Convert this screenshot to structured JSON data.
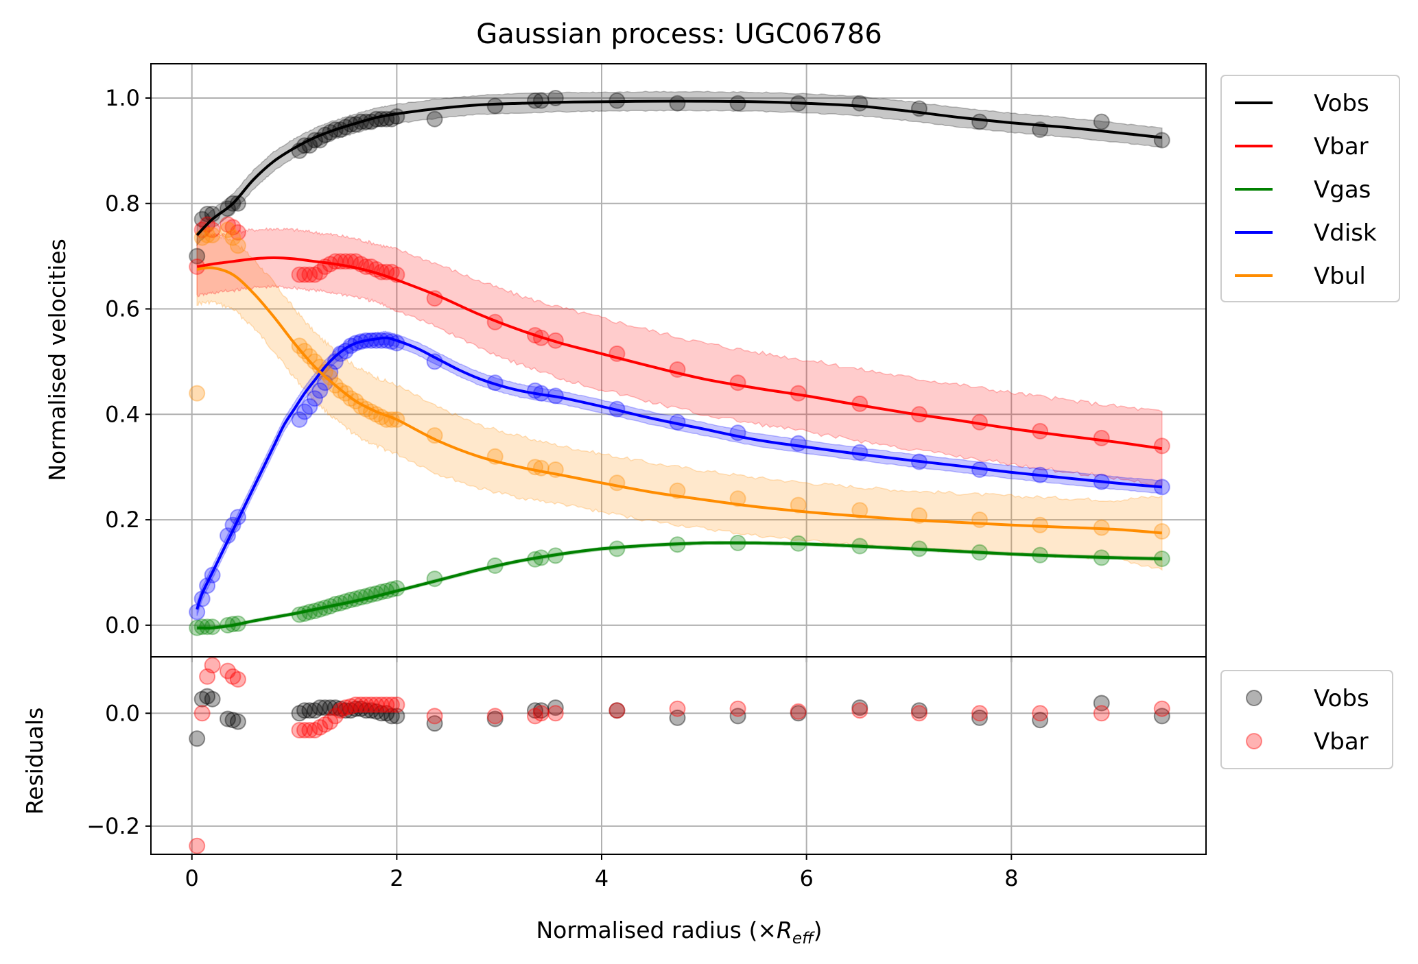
{
  "chart_data": [
    {
      "type": "line",
      "title": "Gaussian process: UGC06786",
      "xlabel_prefix": "Normalised radius (×",
      "xlabel_R": "R",
      "xlabel_sub": "eff",
      "xlabel_suffix": ")",
      "ylabel": "Normalised velocities",
      "xlim": [
        -0.4,
        9.9
      ],
      "ylim": [
        -0.06,
        1.065
      ],
      "x_ticks": [
        0,
        2,
        4,
        6,
        8
      ],
      "x_tick_labels": [
        "0",
        "2",
        "4",
        "6",
        "8"
      ],
      "y_ticks": [
        0.0,
        0.2,
        0.4,
        0.6,
        0.8,
        1.0
      ],
      "y_tick_labels": [
        "0.0",
        "0.2",
        "0.4",
        "0.6",
        "0.8",
        "1.0"
      ],
      "grid": true,
      "legend_placement": "outside-right-top",
      "x_obs": [
        0.05,
        0.1,
        0.15,
        0.2,
        0.35,
        0.4,
        0.45,
        1.05,
        1.1,
        1.15,
        1.2,
        1.25,
        1.3,
        1.35,
        1.4,
        1.45,
        1.5,
        1.55,
        1.6,
        1.65,
        1.7,
        1.75,
        1.8,
        1.85,
        1.9,
        1.95,
        2.0,
        2.37,
        2.96,
        3.35,
        3.41,
        3.55,
        4.15,
        4.74,
        5.33,
        5.92,
        6.52,
        7.1,
        7.69,
        8.28,
        8.88,
        9.47
      ],
      "series": [
        {
          "name": "Vobs",
          "color": "#000000",
          "line_x": [
            0.05,
            0.2,
            0.4,
            0.6,
            0.8,
            1.0,
            1.2,
            1.4,
            1.6,
            1.8,
            2.0,
            2.4,
            2.8,
            3.2,
            3.6,
            4.0,
            4.5,
            5.0,
            5.5,
            6.0,
            6.5,
            7.0,
            7.5,
            8.0,
            8.5,
            9.0,
            9.47
          ],
          "line_y": [
            0.74,
            0.77,
            0.8,
            0.845,
            0.88,
            0.905,
            0.925,
            0.94,
            0.952,
            0.963,
            0.97,
            0.98,
            0.987,
            0.99,
            0.992,
            0.993,
            0.994,
            0.994,
            0.993,
            0.99,
            0.985,
            0.975,
            0.963,
            0.953,
            0.945,
            0.935,
            0.925
          ],
          "band_half_width": [
            0.018,
            0.018,
            0.018,
            0.018,
            0.018,
            0.018,
            0.018,
            0.018,
            0.018,
            0.018,
            0.018,
            0.018,
            0.018,
            0.018,
            0.018,
            0.018,
            0.018,
            0.018,
            0.018,
            0.018,
            0.018,
            0.018,
            0.018,
            0.018,
            0.018,
            0.018,
            0.018
          ],
          "points_y": [
            0.7,
            0.77,
            0.78,
            0.78,
            0.79,
            0.8,
            0.8,
            0.9,
            0.91,
            0.91,
            0.92,
            0.92,
            0.93,
            0.935,
            0.94,
            0.94,
            0.945,
            0.95,
            0.95,
            0.955,
            0.955,
            0.955,
            0.96,
            0.96,
            0.96,
            0.96,
            0.965,
            0.96,
            0.985,
            0.995,
            0.995,
            1.0,
            0.995,
            0.99,
            0.99,
            0.99,
            0.99,
            0.98,
            0.955,
            0.94,
            0.955,
            0.92
          ]
        },
        {
          "name": "Vbar",
          "color": "#ff0000",
          "line_x": [
            0.05,
            0.2,
            0.4,
            0.6,
            0.8,
            1.0,
            1.2,
            1.4,
            1.6,
            1.8,
            2.0,
            2.4,
            2.8,
            3.2,
            3.6,
            4.0,
            4.5,
            5.0,
            5.5,
            6.0,
            6.5,
            7.0,
            7.5,
            8.0,
            8.5,
            9.0,
            9.47
          ],
          "line_y": [
            0.68,
            0.685,
            0.69,
            0.695,
            0.697,
            0.695,
            0.69,
            0.685,
            0.678,
            0.668,
            0.655,
            0.625,
            0.59,
            0.56,
            0.535,
            0.515,
            0.49,
            0.467,
            0.45,
            0.435,
            0.418,
            0.402,
            0.388,
            0.373,
            0.36,
            0.348,
            0.335
          ],
          "band_half_width": [
            0.055,
            0.055,
            0.055,
            0.055,
            0.055,
            0.055,
            0.055,
            0.055,
            0.055,
            0.055,
            0.058,
            0.06,
            0.063,
            0.065,
            0.067,
            0.068,
            0.068,
            0.068,
            0.068,
            0.068,
            0.068,
            0.068,
            0.068,
            0.068,
            0.068,
            0.068,
            0.07
          ],
          "points_y": [
            0.68,
            0.75,
            0.76,
            0.75,
            0.76,
            0.755,
            0.745,
            0.665,
            0.665,
            0.665,
            0.665,
            0.67,
            0.68,
            0.685,
            0.69,
            0.69,
            0.69,
            0.69,
            0.69,
            0.685,
            0.68,
            0.68,
            0.675,
            0.67,
            0.67,
            0.67,
            0.665,
            0.62,
            0.575,
            0.55,
            0.545,
            0.54,
            0.515,
            0.485,
            0.46,
            0.44,
            0.42,
            0.4,
            0.385,
            0.368,
            0.355,
            0.34
          ]
        },
        {
          "name": "Vgas",
          "color": "#008000",
          "line_x": [
            0.05,
            0.2,
            0.4,
            0.6,
            0.8,
            1.0,
            1.2,
            1.4,
            1.6,
            1.8,
            2.0,
            2.4,
            2.8,
            3.2,
            3.6,
            4.0,
            4.5,
            5.0,
            5.5,
            6.0,
            6.5,
            7.0,
            7.5,
            8.0,
            8.5,
            9.0,
            9.47
          ],
          "line_y": [
            -0.005,
            -0.005,
            0.0,
            0.008,
            0.015,
            0.022,
            0.03,
            0.038,
            0.046,
            0.055,
            0.065,
            0.085,
            0.105,
            0.122,
            0.135,
            0.145,
            0.152,
            0.156,
            0.156,
            0.154,
            0.15,
            0.145,
            0.14,
            0.135,
            0.131,
            0.128,
            0.126
          ],
          "band_half_width": [
            0.003,
            0.003,
            0.003,
            0.003,
            0.003,
            0.003,
            0.003,
            0.003,
            0.003,
            0.003,
            0.003,
            0.003,
            0.003,
            0.003,
            0.003,
            0.003,
            0.003,
            0.003,
            0.003,
            0.003,
            0.003,
            0.003,
            0.003,
            0.003,
            0.003,
            0.003,
            0.003
          ],
          "points_y": [
            -0.005,
            -0.003,
            -0.003,
            -0.003,
            0.0,
            0.002,
            0.003,
            0.02,
            0.022,
            0.025,
            0.027,
            0.03,
            0.033,
            0.036,
            0.04,
            0.042,
            0.045,
            0.048,
            0.05,
            0.053,
            0.055,
            0.058,
            0.06,
            0.063,
            0.065,
            0.068,
            0.07,
            0.088,
            0.113,
            0.125,
            0.128,
            0.132,
            0.145,
            0.153,
            0.156,
            0.155,
            0.15,
            0.145,
            0.138,
            0.133,
            0.128,
            0.126
          ]
        },
        {
          "name": "Vdisk",
          "color": "#0000ff",
          "line_x": [
            0.05,
            0.1,
            0.2,
            0.3,
            0.4,
            0.5,
            0.6,
            0.7,
            0.8,
            0.9,
            1.0,
            1.1,
            1.2,
            1.3,
            1.4,
            1.5,
            1.6,
            1.7,
            1.8,
            1.9,
            2.0,
            2.2,
            2.4,
            2.6,
            2.8,
            3.0,
            3.2,
            3.4,
            3.6,
            4.0,
            4.5,
            5.0,
            5.5,
            6.0,
            6.5,
            7.0,
            7.5,
            8.0,
            8.5,
            9.0,
            9.47
          ],
          "line_y": [
            0.03,
            0.06,
            0.1,
            0.14,
            0.18,
            0.22,
            0.26,
            0.3,
            0.34,
            0.38,
            0.41,
            0.44,
            0.465,
            0.49,
            0.51,
            0.525,
            0.535,
            0.54,
            0.543,
            0.545,
            0.54,
            0.525,
            0.505,
            0.485,
            0.468,
            0.455,
            0.445,
            0.438,
            0.432,
            0.415,
            0.392,
            0.372,
            0.352,
            0.338,
            0.325,
            0.313,
            0.302,
            0.29,
            0.28,
            0.27,
            0.262
          ],
          "band_half_width": [
            0.012,
            0.012,
            0.012,
            0.012,
            0.012,
            0.012,
            0.012,
            0.012,
            0.012,
            0.012,
            0.012,
            0.012,
            0.012,
            0.012,
            0.012,
            0.012,
            0.012,
            0.012,
            0.012,
            0.012,
            0.012,
            0.012,
            0.012,
            0.012,
            0.012,
            0.012,
            0.012,
            0.012,
            0.012,
            0.012,
            0.012,
            0.012,
            0.012,
            0.012,
            0.012,
            0.012,
            0.012,
            0.012,
            0.012,
            0.012,
            0.012
          ],
          "points_y": [
            0.025,
            0.05,
            0.075,
            0.095,
            0.17,
            0.19,
            0.205,
            0.39,
            0.405,
            0.415,
            0.43,
            0.445,
            0.46,
            0.48,
            0.5,
            0.515,
            0.52,
            0.53,
            0.535,
            0.538,
            0.54,
            0.54,
            0.54,
            0.54,
            0.54,
            0.538,
            0.535,
            0.5,
            0.46,
            0.445,
            0.44,
            0.435,
            0.41,
            0.385,
            0.365,
            0.345,
            0.328,
            0.31,
            0.295,
            0.285,
            0.272,
            0.262
          ]
        },
        {
          "name": "Vbul",
          "color": "#ff8c00",
          "line_x": [
            0.05,
            0.2,
            0.4,
            0.6,
            0.8,
            1.0,
            1.2,
            1.4,
            1.6,
            1.8,
            2.0,
            2.4,
            2.8,
            3.2,
            3.6,
            4.0,
            4.5,
            5.0,
            5.5,
            6.0,
            6.5,
            7.0,
            7.5,
            8.0,
            8.5,
            9.0,
            9.47
          ],
          "line_y": [
            0.675,
            0.678,
            0.665,
            0.63,
            0.585,
            0.535,
            0.49,
            0.455,
            0.425,
            0.405,
            0.39,
            0.35,
            0.32,
            0.3,
            0.285,
            0.27,
            0.252,
            0.238,
            0.225,
            0.215,
            0.207,
            0.2,
            0.195,
            0.19,
            0.186,
            0.182,
            0.175
          ],
          "band_half_width": [
            0.065,
            0.065,
            0.065,
            0.065,
            0.065,
            0.065,
            0.065,
            0.065,
            0.065,
            0.065,
            0.065,
            0.063,
            0.06,
            0.058,
            0.055,
            0.055,
            0.055,
            0.055,
            0.055,
            0.055,
            0.055,
            0.055,
            0.055,
            0.055,
            0.055,
            0.055,
            0.07
          ],
          "points_y": [
            0.44,
            0.735,
            0.74,
            0.74,
            0.75,
            0.735,
            0.72,
            0.53,
            0.52,
            0.51,
            0.5,
            0.49,
            0.48,
            0.47,
            0.455,
            0.445,
            0.44,
            0.43,
            0.425,
            0.415,
            0.41,
            0.405,
            0.4,
            0.395,
            0.39,
            0.39,
            0.39,
            0.36,
            0.32,
            0.3,
            0.298,
            0.295,
            0.27,
            0.255,
            0.24,
            0.228,
            0.218,
            0.208,
            0.2,
            0.19,
            0.185,
            0.178
          ]
        }
      ]
    },
    {
      "type": "scatter",
      "xlabel": "Normalised radius (×Reff)",
      "ylabel": "Residuals",
      "xlim": [
        -0.4,
        9.9
      ],
      "ylim": [
        -0.25,
        0.1
      ],
      "x_ticks": [
        0,
        2,
        4,
        6,
        8
      ],
      "x_tick_labels": [
        "0",
        "2",
        "4",
        "6",
        "8"
      ],
      "y_ticks": [
        -0.2,
        0.0
      ],
      "y_tick_labels": [
        "−0.2",
        "0.0"
      ],
      "grid": true,
      "legend_placement": "outside-right",
      "x": [
        0.05,
        0.1,
        0.15,
        0.2,
        0.35,
        0.4,
        0.45,
        1.05,
        1.1,
        1.15,
        1.2,
        1.25,
        1.3,
        1.35,
        1.4,
        1.45,
        1.5,
        1.55,
        1.6,
        1.65,
        1.7,
        1.75,
        1.8,
        1.85,
        1.9,
        1.95,
        2.0,
        2.37,
        2.96,
        3.35,
        3.41,
        3.55,
        4.15,
        4.74,
        5.33,
        5.92,
        6.52,
        7.1,
        7.69,
        8.28,
        8.88,
        9.47
      ],
      "series": [
        {
          "name": "Vobs",
          "color": "#000000",
          "values": [
            -0.045,
            0.025,
            0.03,
            0.025,
            -0.01,
            -0.012,
            -0.015,
            0.0,
            0.005,
            0.005,
            0.005,
            0.01,
            0.01,
            0.01,
            0.01,
            0.008,
            0.005,
            0.005,
            0.008,
            0.008,
            0.005,
            0.005,
            0.003,
            0.0,
            0.0,
            -0.005,
            -0.005,
            -0.018,
            -0.01,
            0.005,
            0.005,
            0.01,
            0.005,
            -0.008,
            -0.005,
            0.0,
            0.01,
            0.005,
            -0.008,
            -0.012,
            0.018,
            -0.005
          ],
          "zero_band": []
        },
        {
          "name": "Vbar",
          "color": "#ff0000",
          "values": [
            -0.235,
            0.0,
            0.065,
            0.085,
            0.075,
            0.065,
            0.06,
            -0.03,
            -0.03,
            -0.03,
            -0.03,
            -0.025,
            -0.02,
            -0.015,
            -0.005,
            0.005,
            0.01,
            0.012,
            0.015,
            0.015,
            0.015,
            0.015,
            0.015,
            0.015,
            0.015,
            0.015,
            0.015,
            -0.005,
            -0.005,
            -0.005,
            0.0,
            0.0,
            0.005,
            0.008,
            0.008,
            0.003,
            0.005,
            0.0,
            0.0,
            0.0,
            0.0,
            0.008
          ]
        }
      ]
    }
  ]
}
